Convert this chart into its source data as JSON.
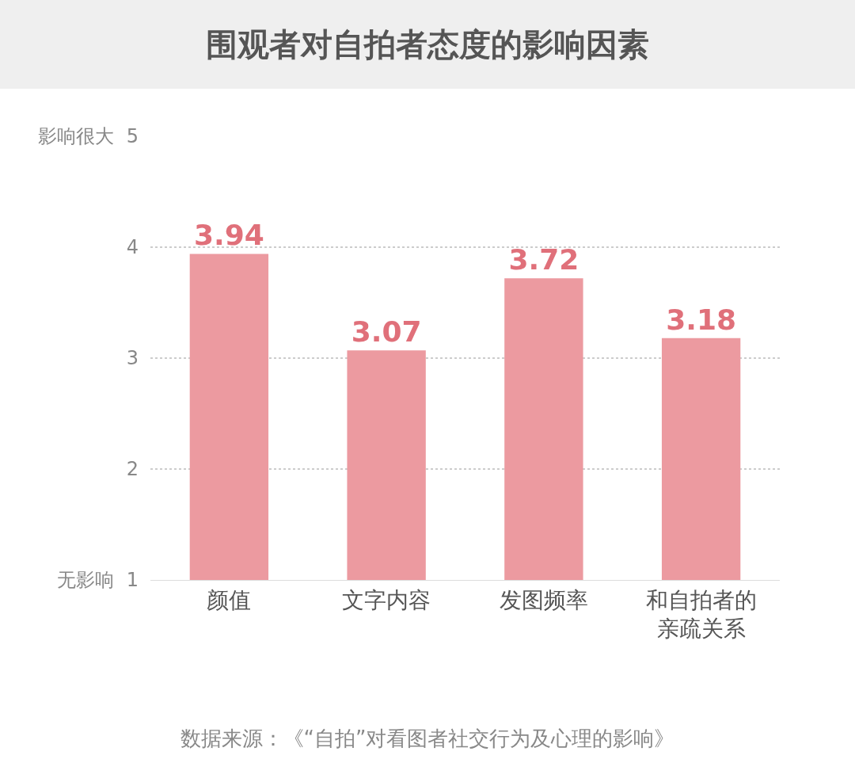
{
  "chart_data": {
    "type": "bar",
    "title": "围观者对自拍者态度的影响因素",
    "categories": [
      "颜值",
      "文字内容",
      "发图频率",
      "和自拍者的亲疏关系"
    ],
    "values": [
      3.94,
      3.07,
      3.72,
      3.18
    ],
    "color": "#ec9aa0",
    "data_labels": true,
    "ylim": [
      1,
      5
    ],
    "yticks": [
      {
        "value": 1,
        "label": "无影响  1"
      },
      2,
      3,
      4,
      {
        "value": 5,
        "label": "影响很大  5"
      }
    ],
    "grid": "y",
    "annotations": [
      "数据来源：《“自拍”对看图者社交行为及心理的影响》"
    ]
  }
}
